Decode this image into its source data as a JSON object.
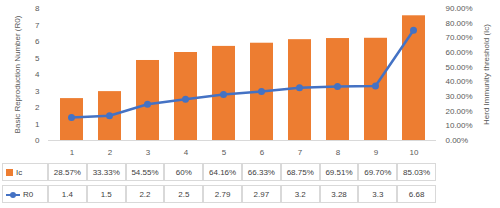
{
  "chart_data": {
    "type": "bar",
    "categories": [
      1,
      2,
      3,
      4,
      5,
      6,
      7,
      8,
      9,
      10
    ],
    "series": [
      {
        "name": "Ic",
        "type": "bar",
        "axis": "y2",
        "color": "#ed7d31",
        "values": [
          28.57,
          33.33,
          54.55,
          60,
          64.16,
          66.33,
          68.75,
          69.51,
          69.7,
          85.03
        ],
        "value_labels": [
          "28.57%",
          "33.33%",
          "54.55%",
          "60%",
          "64.16%",
          "66.33%",
          "68.75%",
          "69.51%",
          "69.70%",
          "85.03%"
        ]
      },
      {
        "name": "R0",
        "type": "line",
        "color": "#4472c4",
        "marker": "circle",
        "line_style": "solid",
        "values": [
          1.4,
          1.5,
          2.2,
          2.5,
          2.79,
          2.97,
          3.2,
          3.28,
          3.3,
          6.68
        ]
      }
    ],
    "ylabel": "Basic Reproduction Number (R0)",
    "y2label": "Herd Immunity threshold (Ic)",
    "ylim": [
      0,
      8
    ],
    "yticks": [
      0,
      1,
      2,
      3,
      4,
      5,
      6,
      7,
      8
    ],
    "y2lim": [
      0,
      90
    ],
    "y2ticks": [
      {
        "value": 0,
        "label": "0.00%"
      },
      {
        "value": 10,
        "label": "10.00%"
      },
      {
        "value": 20,
        "label": "20.00%"
      },
      {
        "value": 30,
        "label": "30.00%"
      },
      {
        "value": 40,
        "label": "40.00%"
      },
      {
        "value": 50,
        "label": "50.00%"
      },
      {
        "value": 60,
        "label": "60.00%"
      },
      {
        "value": 70,
        "label": "70.00%"
      },
      {
        "value": 80,
        "label": "80.00%"
      },
      {
        "value": 90,
        "label": "90.00%"
      }
    ],
    "grid": false
  }
}
